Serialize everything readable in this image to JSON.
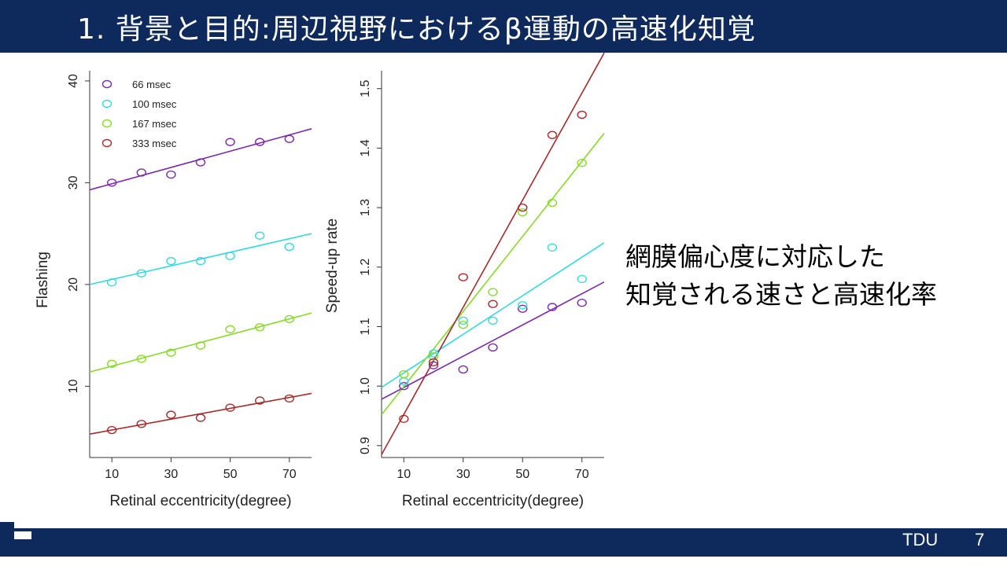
{
  "slide": {
    "title": "1. 背景と目的:周辺視野におけるβ運動の高速化知覚",
    "desc_line1": "網膜偏心度に対応した",
    "desc_line2": "知覚される速さと高速化率",
    "footer_org": "TDU",
    "page_number": "7"
  },
  "colors": {
    "title_bar": "#0e2a5c",
    "s66": "#7b2aa8",
    "s100": "#37d9de",
    "s167": "#88d92a",
    "s333": "#a52b2b"
  },
  "chart_data": [
    {
      "type": "scatter",
      "xlabel": "Retinal eccentricity(degree)",
      "ylabel": "Flashing",
      "x": [
        10,
        20,
        30,
        40,
        50,
        60,
        70
      ],
      "xlim": [
        2.5,
        77.5
      ],
      "ylim": [
        3,
        41
      ],
      "xticks": [
        10,
        30,
        50,
        70
      ],
      "yticks": [
        10,
        20,
        30,
        40
      ],
      "grid": false,
      "legend_position": "top-left",
      "series": [
        {
          "name": "66   msec",
          "color": "#7b2aa8",
          "values": [
            30.0,
            31.0,
            30.8,
            32.0,
            34.0,
            34.0,
            34.3
          ],
          "fit": [
            [
              2.5,
              29.3
            ],
            [
              77.5,
              35.3
            ]
          ]
        },
        {
          "name": "100 msec",
          "color": "#37d9de",
          "values": [
            20.2,
            21.1,
            22.3,
            22.3,
            22.8,
            24.8,
            23.7
          ],
          "fit": [
            [
              2.5,
              20.0
            ],
            [
              77.5,
              25.0
            ]
          ]
        },
        {
          "name": "167 msec",
          "color": "#88d92a",
          "values": [
            12.2,
            12.7,
            13.3,
            14.0,
            15.6,
            15.8,
            16.6
          ],
          "fit": [
            [
              2.5,
              11.4
            ],
            [
              77.5,
              17.2
            ]
          ]
        },
        {
          "name": "333 msec",
          "color": "#a52b2b",
          "values": [
            5.7,
            6.3,
            7.2,
            6.9,
            7.9,
            8.6,
            8.8
          ],
          "fit": [
            [
              2.5,
              5.3
            ],
            [
              77.5,
              9.3
            ]
          ]
        }
      ]
    },
    {
      "type": "scatter",
      "xlabel": "Retinal eccentricity(degree)",
      "ylabel": "Speed-up rate",
      "x": [
        10,
        20,
        30,
        40,
        50,
        60,
        70
      ],
      "xlim": [
        2.5,
        77.5
      ],
      "ylim": [
        0.88,
        1.53
      ],
      "xticks": [
        10,
        30,
        50,
        70
      ],
      "yticks": [
        "0.9",
        "1.0",
        "1.1",
        "1.2",
        "1.3",
        "1.4",
        "1.5"
      ],
      "grid": false,
      "series": [
        {
          "name": "66   msec",
          "color": "#7b2aa8",
          "values": [
            1.0,
            1.035,
            1.028,
            1.065,
            1.13,
            1.133,
            1.14
          ],
          "fit": [
            [
              2.5,
              0.978
            ],
            [
              77.5,
              1.175
            ]
          ]
        },
        {
          "name": "100 msec",
          "color": "#37d9de",
          "values": [
            1.008,
            1.055,
            1.11,
            1.11,
            1.136,
            1.233,
            1.18
          ],
          "fit": [
            [
              2.5,
              0.998
            ],
            [
              77.5,
              1.241
            ]
          ]
        },
        {
          "name": "167 msec",
          "color": "#88d92a",
          "values": [
            1.02,
            1.05,
            1.103,
            1.158,
            1.292,
            1.308,
            1.375
          ],
          "fit": [
            [
              2.5,
              0.952
            ],
            [
              77.5,
              1.425
            ]
          ]
        },
        {
          "name": "333 msec",
          "color": "#a52b2b",
          "values": [
            0.945,
            1.04,
            1.183,
            1.138,
            1.3,
            1.422,
            1.456
          ],
          "fit": [
            [
              2.5,
              0.885
            ],
            [
              77.5,
              1.56
            ]
          ]
        }
      ]
    }
  ]
}
